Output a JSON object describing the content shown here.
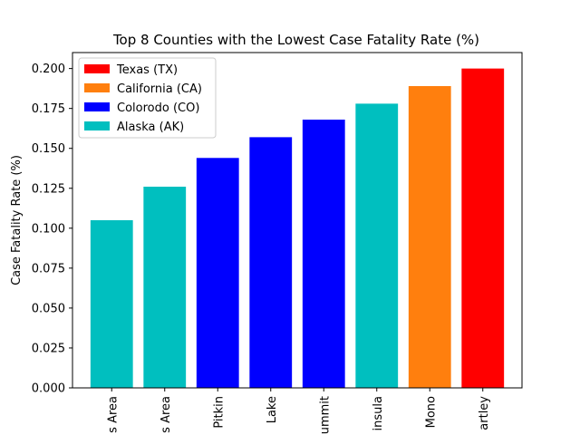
{
  "chart_data": {
    "type": "bar",
    "title": "Top 8 Counties with the Lowest Case Fatality Rate (%)",
    "xlabel": "",
    "ylabel": "Case Fatality Rate (%)",
    "ylim": [
      0,
      0.21
    ],
    "yticks": [
      "0.000",
      "0.025",
      "0.050",
      "0.075",
      "0.100",
      "0.125",
      "0.150",
      "0.175",
      "0.200"
    ],
    "categories": [
      "s Area",
      "s Area",
      "Pitkin",
      "Lake",
      "ummit",
      "insula",
      "Mono",
      "artley"
    ],
    "values": [
      0.105,
      0.126,
      0.144,
      0.157,
      0.168,
      0.178,
      0.189,
      0.2
    ],
    "bar_colors": [
      "#00bfbf",
      "#00bfbf",
      "#0000ff",
      "#0000ff",
      "#0000ff",
      "#00bfbf",
      "#ff7f0e",
      "#ff0000"
    ],
    "legend": {
      "placement": "top-left",
      "entries": [
        {
          "label": "Texas (TX)",
          "color": "#ff0000"
        },
        {
          "label": "California (CA)",
          "color": "#ff7f0e"
        },
        {
          "label": "Colorodo (CO)",
          "color": "#0000ff"
        },
        {
          "label": "Alaska (AK)",
          "color": "#00bfbf"
        }
      ]
    },
    "grid": false
  }
}
